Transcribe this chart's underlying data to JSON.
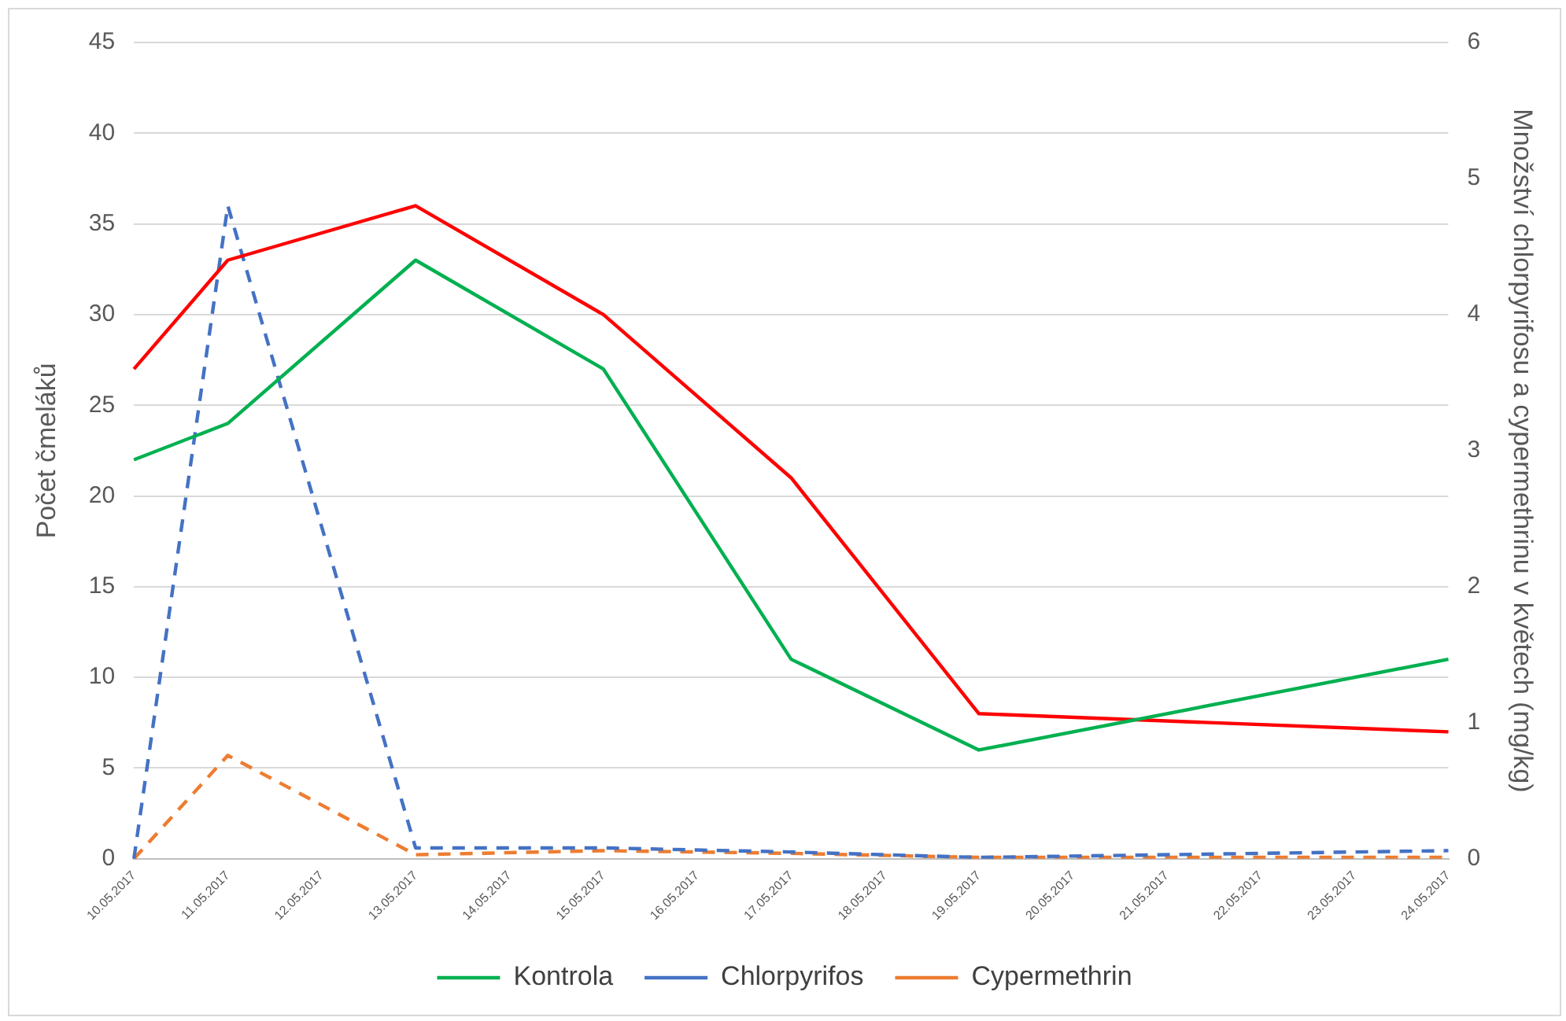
{
  "chart_data": {
    "type": "line",
    "ylabel": "Počet čmeláků",
    "y2label": "Množství chlorpyrifosu a cypermethrinu v květech (mg/kg)",
    "categories": [
      "10.05.2017",
      "11.05.2017",
      "12.05.2017",
      "13.05.2017",
      "14.05.2017",
      "15.05.2017",
      "16.05.2017",
      "17.05.2017",
      "18.05.2017",
      "19.05.2017",
      "20.05.2017",
      "21.05.2017",
      "22.05.2017",
      "23.05.2017",
      "24.05.2017"
    ],
    "series": [
      {
        "name": "Kontrola",
        "color": "#00b050",
        "line_style": "solid",
        "values": [
          22,
          24,
          null,
          33,
          null,
          27,
          null,
          11,
          null,
          6,
          null,
          null,
          null,
          null,
          11
        ]
      },
      {
        "color": "#ff0000",
        "line_style": "solid",
        "values": [
          27,
          33,
          null,
          36,
          null,
          30,
          null,
          21,
          null,
          8,
          null,
          null,
          null,
          null,
          7
        ]
      },
      {
        "name": "Chlorpyrifos",
        "color": "#4472c4",
        "line_style": "dashed",
        "axis": "y2",
        "values": [
          0,
          4.8,
          null,
          0.08,
          null,
          0.08,
          null,
          0.05,
          null,
          0.01,
          null,
          null,
          null,
          null,
          0.06
        ]
      },
      {
        "name": "Cypermethrin",
        "color": "#ed7d31",
        "line_style": "dashed",
        "axis": "y2",
        "values": [
          0,
          0.76,
          null,
          0.03,
          null,
          0.06,
          null,
          0.04,
          null,
          0.01,
          null,
          null,
          null,
          null,
          0.01
        ]
      }
    ],
    "ylim": [
      0,
      45
    ],
    "yticks": [
      0,
      5,
      10,
      15,
      20,
      25,
      30,
      35,
      40,
      45
    ],
    "y2lim": [
      0,
      6
    ],
    "y2ticks": [
      0,
      1,
      2,
      3,
      4,
      5,
      6
    ],
    "grid": "y",
    "legend": "bottom",
    "marker": "none"
  }
}
